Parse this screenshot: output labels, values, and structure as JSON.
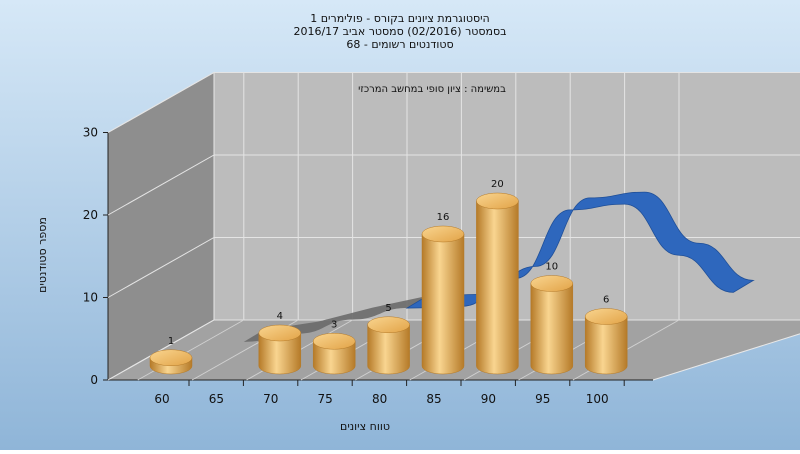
{
  "chart_data": {
    "type": "bar",
    "title_lines": [
      "היסטוגרמת ציונים בקורס - פולימרים 1",
      "בסמסטר  (02/2016)  סמסטר אביב 2016/17",
      "סטודנטים רשומים - 68"
    ],
    "subtitle": "במשימה : ציון סופי במחשב המרכזי",
    "xlabel": "טווח ציונים",
    "ylabel": "מספר סטודנטים",
    "x_ticks": [
      "60",
      "65",
      "70",
      "75",
      "80",
      "85",
      "90",
      "95",
      "100"
    ],
    "y_ticks": [
      "0",
      "10",
      "20",
      "30"
    ],
    "ylim": [
      0,
      30
    ],
    "grid": true,
    "categories": [
      "60",
      "70",
      "75",
      "80",
      "85",
      "90",
      "95",
      "100"
    ],
    "values": [
      1,
      4,
      3,
      5,
      16,
      20,
      10,
      6
    ],
    "data_labels": [
      "1",
      "4",
      "3",
      "5",
      "16",
      "20",
      "10",
      "6"
    ],
    "distribution_curve": {
      "x": [
        62,
        67,
        72,
        77,
        82,
        87,
        92,
        97,
        102,
        107
      ],
      "y": [
        0.5,
        1.5,
        3.2,
        4.6,
        4.8,
        8.2,
        16.5,
        17.2,
        11.0,
        6.5
      ]
    },
    "colors": {
      "background_top": "#d6e8f7",
      "background_bottom": "#8fb5d8",
      "wall": "#bcbcbc",
      "side_wall": "#8e8e8e",
      "floor": "#a2a2a2",
      "bar": "#e2a347",
      "bar_light": "#f9d590",
      "bar_dark": "#b57a28",
      "curve": "#2e67bd",
      "curve_gray": "#6a6a6a"
    }
  }
}
